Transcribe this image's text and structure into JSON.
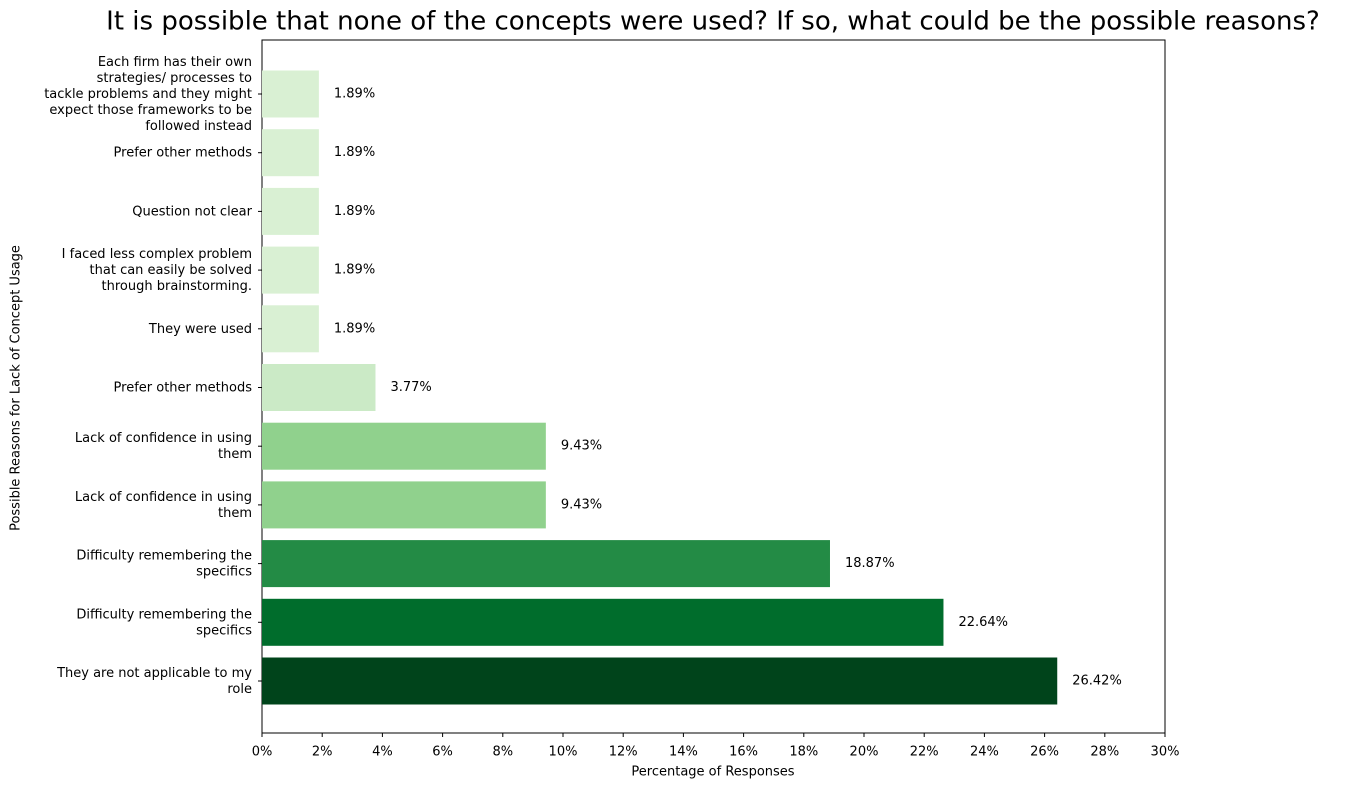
{
  "chart_data": {
    "type": "barh",
    "title": "It is possible that none of the concepts were used? If so, what could be the possible reasons?",
    "xlabel": "Percentage of Responses",
    "ylabel": "Possible Reasons for Lack of Concept Usage",
    "categories": [
      "They are not applicable to my\nrole",
      "Difficulty remembering the\nspecifics",
      "Difficulty remembering the\nspecifics",
      "Lack of confidence in using\nthem",
      "Lack of confidence in using\nthem",
      "Prefer other methods",
      "They were used",
      "I faced less complex problem\nthat can easily be solved\nthrough brainstorming.",
      "Question not clear",
      "Prefer other methods",
      "Each firm has their own\nstrategies/ processes to\ntackle problems and they might\nexpect those frameworks to be\nfollowed instead"
    ],
    "values": [
      26.42,
      22.64,
      18.87,
      9.43,
      9.43,
      3.77,
      1.89,
      1.89,
      1.89,
      1.89,
      1.89
    ],
    "value_labels": [
      "26.42%",
      "22.64%",
      "18.87%",
      "9.43%",
      "9.43%",
      "3.77%",
      "1.89%",
      "1.89%",
      "1.89%",
      "1.89%",
      "1.89%"
    ],
    "colors": [
      "#00441b",
      "#006d2c",
      "#238b45",
      "#90d18d",
      "#90d18d",
      "#cbeac6",
      "#d9f0d3",
      "#d9f0d3",
      "#d9f0d3",
      "#d9f0d3",
      "#d9f0d3"
    ],
    "xlim": [
      0,
      30
    ],
    "xticks": [
      {
        "value": 0,
        "label": "0%"
      },
      {
        "value": 2,
        "label": "2%"
      },
      {
        "value": 4,
        "label": "4%"
      },
      {
        "value": 6,
        "label": "6%"
      },
      {
        "value": 8,
        "label": "8%"
      },
      {
        "value": 10,
        "label": "10%"
      },
      {
        "value": 12,
        "label": "12%"
      },
      {
        "value": 14,
        "label": "14%"
      },
      {
        "value": 16,
        "label": "16%"
      },
      {
        "value": 18,
        "label": "18%"
      },
      {
        "value": 20,
        "label": "20%"
      },
      {
        "value": 22,
        "label": "22%"
      },
      {
        "value": 24,
        "label": "24%"
      },
      {
        "value": 26,
        "label": "26%"
      },
      {
        "value": 28,
        "label": "28%"
      },
      {
        "value": 30,
        "label": "30%"
      }
    ],
    "grid": false
  }
}
